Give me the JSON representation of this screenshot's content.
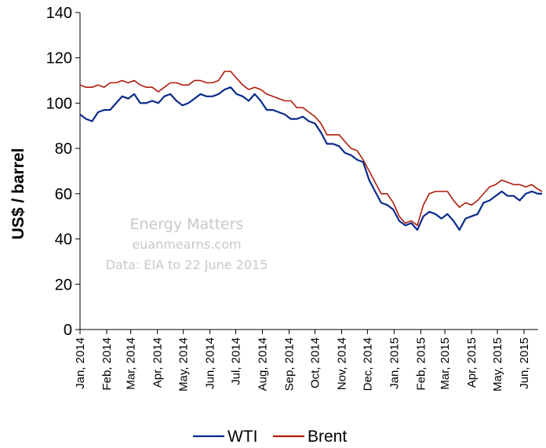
{
  "chart_data": {
    "type": "line",
    "ylabel": "US$ / barrel",
    "ylim": [
      0,
      140
    ],
    "yticks": [
      0,
      20,
      40,
      60,
      80,
      100,
      120,
      140
    ],
    "xlim": [
      "2014-01-01",
      "2015-06-22"
    ],
    "xticks": [
      {
        "date": "2014-01-01",
        "label": "Jan, 2014"
      },
      {
        "date": "2014-02-01",
        "label": "Feb, 2014"
      },
      {
        "date": "2014-03-01",
        "label": "Mar, 2014"
      },
      {
        "date": "2014-04-01",
        "label": "Apr, 2014"
      },
      {
        "date": "2014-05-01",
        "label": "May, 2014"
      },
      {
        "date": "2014-06-01",
        "label": "Jun, 2014"
      },
      {
        "date": "2014-07-01",
        "label": "Jul, 2014"
      },
      {
        "date": "2014-08-01",
        "label": "Aug, 2014"
      },
      {
        "date": "2014-09-01",
        "label": "Sep, 2014"
      },
      {
        "date": "2014-10-01",
        "label": "Oct, 2014"
      },
      {
        "date": "2014-11-01",
        "label": "Nov, 2014"
      },
      {
        "date": "2014-12-01",
        "label": "Dec, 2014"
      },
      {
        "date": "2015-01-01",
        "label": "Jan, 2015"
      },
      {
        "date": "2015-02-01",
        "label": "Feb, 2015"
      },
      {
        "date": "2015-03-01",
        "label": "Mar, 2015"
      },
      {
        "date": "2015-04-01",
        "label": "Apr, 2015"
      },
      {
        "date": "2015-05-01",
        "label": "May, 2015"
      },
      {
        "date": "2015-06-01",
        "label": "Jun, 2015"
      }
    ],
    "grid": false,
    "legend": "bottom",
    "watermark": [
      "Energy Matters",
      "euanmearns.com",
      "Data: EIA to 22 June 2015"
    ],
    "series": [
      {
        "name": "WTI",
        "color": "#0a2a8c",
        "points": [
          [
            "2014-01-01",
            95
          ],
          [
            "2014-01-08",
            93
          ],
          [
            "2014-01-15",
            92
          ],
          [
            "2014-01-22",
            96
          ],
          [
            "2014-01-29",
            97
          ],
          [
            "2014-02-05",
            97
          ],
          [
            "2014-02-12",
            100
          ],
          [
            "2014-02-19",
            103
          ],
          [
            "2014-02-26",
            102
          ],
          [
            "2014-03-05",
            104
          ],
          [
            "2014-03-12",
            100
          ],
          [
            "2014-03-19",
            100
          ],
          [
            "2014-03-26",
            101
          ],
          [
            "2014-04-02",
            100
          ],
          [
            "2014-04-09",
            103
          ],
          [
            "2014-04-16",
            104
          ],
          [
            "2014-04-23",
            101
          ],
          [
            "2014-04-30",
            99
          ],
          [
            "2014-05-07",
            100
          ],
          [
            "2014-05-14",
            102
          ],
          [
            "2014-05-21",
            104
          ],
          [
            "2014-05-28",
            103
          ],
          [
            "2014-06-04",
            103
          ],
          [
            "2014-06-11",
            104
          ],
          [
            "2014-06-18",
            106
          ],
          [
            "2014-06-25",
            107
          ],
          [
            "2014-07-02",
            104
          ],
          [
            "2014-07-09",
            103
          ],
          [
            "2014-07-16",
            101
          ],
          [
            "2014-07-23",
            104
          ],
          [
            "2014-07-30",
            101
          ],
          [
            "2014-08-06",
            97
          ],
          [
            "2014-08-13",
            97
          ],
          [
            "2014-08-20",
            96
          ],
          [
            "2014-08-27",
            95
          ],
          [
            "2014-09-03",
            93
          ],
          [
            "2014-09-10",
            93
          ],
          [
            "2014-09-17",
            94
          ],
          [
            "2014-09-24",
            92
          ],
          [
            "2014-10-01",
            91
          ],
          [
            "2014-10-08",
            87
          ],
          [
            "2014-10-15",
            82
          ],
          [
            "2014-10-22",
            82
          ],
          [
            "2014-10-29",
            81
          ],
          [
            "2014-11-05",
            78
          ],
          [
            "2014-11-12",
            77
          ],
          [
            "2014-11-19",
            75
          ],
          [
            "2014-11-26",
            74
          ],
          [
            "2014-12-03",
            66
          ],
          [
            "2014-12-10",
            61
          ],
          [
            "2014-12-17",
            56
          ],
          [
            "2014-12-24",
            55
          ],
          [
            "2014-12-31",
            53
          ],
          [
            "2015-01-07",
            48
          ],
          [
            "2015-01-14",
            46
          ],
          [
            "2015-01-21",
            47
          ],
          [
            "2015-01-28",
            44
          ],
          [
            "2015-02-04",
            50
          ],
          [
            "2015-02-11",
            52
          ],
          [
            "2015-02-18",
            51
          ],
          [
            "2015-02-25",
            49
          ],
          [
            "2015-03-04",
            51
          ],
          [
            "2015-03-11",
            48
          ],
          [
            "2015-03-18",
            44
          ],
          [
            "2015-03-25",
            49
          ],
          [
            "2015-04-01",
            50
          ],
          [
            "2015-04-08",
            51
          ],
          [
            "2015-04-15",
            56
          ],
          [
            "2015-04-22",
            57
          ],
          [
            "2015-04-29",
            59
          ],
          [
            "2015-05-06",
            61
          ],
          [
            "2015-05-13",
            59
          ],
          [
            "2015-05-20",
            59
          ],
          [
            "2015-05-27",
            57
          ],
          [
            "2015-06-03",
            60
          ],
          [
            "2015-06-10",
            61
          ],
          [
            "2015-06-17",
            60
          ],
          [
            "2015-06-22",
            60
          ]
        ]
      },
      {
        "name": "Brent",
        "color": "#b01c0a",
        "points": [
          [
            "2014-01-01",
            108
          ],
          [
            "2014-01-08",
            107
          ],
          [
            "2014-01-15",
            107
          ],
          [
            "2014-01-22",
            108
          ],
          [
            "2014-01-29",
            107
          ],
          [
            "2014-02-05",
            109
          ],
          [
            "2014-02-12",
            109
          ],
          [
            "2014-02-19",
            110
          ],
          [
            "2014-02-26",
            109
          ],
          [
            "2014-03-05",
            110
          ],
          [
            "2014-03-12",
            108
          ],
          [
            "2014-03-19",
            107
          ],
          [
            "2014-03-26",
            107
          ],
          [
            "2014-04-02",
            105
          ],
          [
            "2014-04-09",
            107
          ],
          [
            "2014-04-16",
            109
          ],
          [
            "2014-04-23",
            109
          ],
          [
            "2014-04-30",
            108
          ],
          [
            "2014-05-07",
            108
          ],
          [
            "2014-05-14",
            110
          ],
          [
            "2014-05-21",
            110
          ],
          [
            "2014-05-28",
            109
          ],
          [
            "2014-06-04",
            109
          ],
          [
            "2014-06-11",
            110
          ],
          [
            "2014-06-18",
            114
          ],
          [
            "2014-06-25",
            114
          ],
          [
            "2014-07-02",
            111
          ],
          [
            "2014-07-09",
            108
          ],
          [
            "2014-07-16",
            106
          ],
          [
            "2014-07-23",
            107
          ],
          [
            "2014-07-30",
            106
          ],
          [
            "2014-08-06",
            104
          ],
          [
            "2014-08-13",
            103
          ],
          [
            "2014-08-20",
            102
          ],
          [
            "2014-08-27",
            101
          ],
          [
            "2014-09-03",
            101
          ],
          [
            "2014-09-10",
            98
          ],
          [
            "2014-09-17",
            98
          ],
          [
            "2014-09-24",
            96
          ],
          [
            "2014-10-01",
            94
          ],
          [
            "2014-10-08",
            91
          ],
          [
            "2014-10-15",
            86
          ],
          [
            "2014-10-22",
            86
          ],
          [
            "2014-10-29",
            86
          ],
          [
            "2014-11-05",
            83
          ],
          [
            "2014-11-12",
            80
          ],
          [
            "2014-11-19",
            79
          ],
          [
            "2014-11-26",
            75
          ],
          [
            "2014-12-03",
            70
          ],
          [
            "2014-12-10",
            65
          ],
          [
            "2014-12-17",
            60
          ],
          [
            "2014-12-24",
            60
          ],
          [
            "2014-12-31",
            56
          ],
          [
            "2015-01-07",
            50
          ],
          [
            "2015-01-14",
            47
          ],
          [
            "2015-01-21",
            48
          ],
          [
            "2015-01-28",
            46
          ],
          [
            "2015-02-04",
            55
          ],
          [
            "2015-02-11",
            60
          ],
          [
            "2015-02-18",
            61
          ],
          [
            "2015-02-25",
            61
          ],
          [
            "2015-03-04",
            61
          ],
          [
            "2015-03-11",
            57
          ],
          [
            "2015-03-18",
            54
          ],
          [
            "2015-03-25",
            56
          ],
          [
            "2015-04-01",
            55
          ],
          [
            "2015-04-08",
            57
          ],
          [
            "2015-04-15",
            60
          ],
          [
            "2015-04-22",
            63
          ],
          [
            "2015-04-29",
            64
          ],
          [
            "2015-05-06",
            66
          ],
          [
            "2015-05-13",
            65
          ],
          [
            "2015-05-20",
            64
          ],
          [
            "2015-05-27",
            64
          ],
          [
            "2015-06-03",
            63
          ],
          [
            "2015-06-10",
            64
          ],
          [
            "2015-06-17",
            62
          ],
          [
            "2015-06-22",
            61
          ]
        ]
      }
    ]
  }
}
